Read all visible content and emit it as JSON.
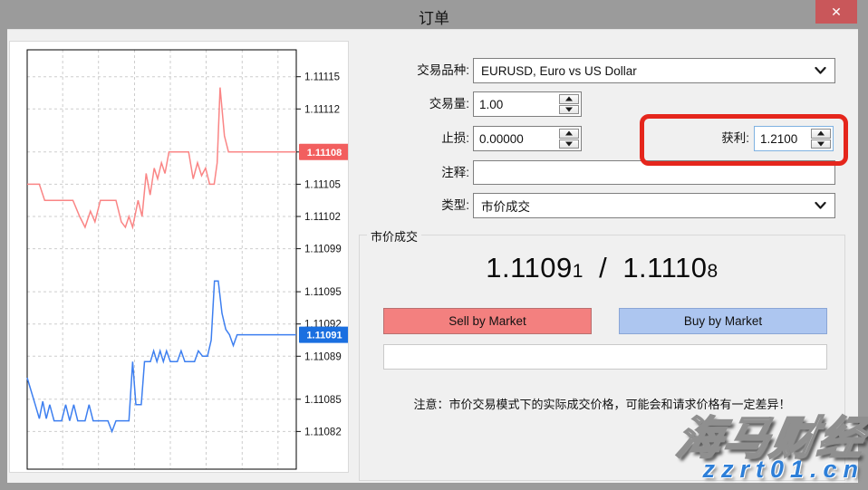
{
  "titlebar": {
    "title": "订单",
    "close": "✕"
  },
  "form": {
    "symbol_label": "交易品种:",
    "symbol_value": "EURUSD, Euro vs US Dollar",
    "volume_label": "交易量:",
    "volume_value": "1.00",
    "stoploss_label": "止损:",
    "stoploss_value": "0.00000",
    "takeprofit_label": "获利:",
    "takeprofit_value": "1.2100",
    "comment_label": "注释:",
    "comment_value": "",
    "type_label": "类型:",
    "type_value": "市价成交"
  },
  "market": {
    "group_title": "市价成交",
    "bid_main": "1.1109",
    "bid_last": "1",
    "separator": " / ",
    "ask_main": "1.1110",
    "ask_last": "8",
    "sell_label": "Sell by Market",
    "buy_label": "Buy by Market",
    "note": "注意：市价交易模式下的实际成交价格，可能会和请求价格有一定差异！"
  },
  "watermark": {
    "brand": "海马财经",
    "site": "zzrt01.cn"
  },
  "colors": {
    "titlebar": "#9b9b9b",
    "content_bg": "#f0f0f0",
    "annotation_red": "#e5261c",
    "close_button": "#c9575a",
    "sell_button": "#f3807f",
    "buy_button": "#adc6f0",
    "ask_line": "#fa8585",
    "bid_line": "#3d7ff0",
    "ask_badge": "#f25f5f",
    "bid_badge": "#1a6fe0"
  },
  "chart_data": {
    "type": "line",
    "ylim": [
      1.110785,
      1.111175
    ],
    "grid": true,
    "legend_position": "none",
    "y_ticks": [
      {
        "value": "1.11115"
      },
      {
        "value": "1.11112"
      },
      {
        "value": "1.11108",
        "hide_label": true
      },
      {
        "value": "1.11105"
      },
      {
        "value": "1.11102"
      },
      {
        "value": "1.11099"
      },
      {
        "value": "1.11095"
      },
      {
        "value": "1.11092"
      },
      {
        "value": "1.11089"
      },
      {
        "value": "1.11085"
      },
      {
        "value": "1.11082"
      }
    ],
    "x_gridlines": [
      0.132,
      0.265,
      0.399,
      0.532,
      0.665,
      0.799,
      0.932
    ],
    "badges": [
      {
        "value": 1.11108,
        "label": "1.11108",
        "color": "#f25f5f",
        "series": "ask"
      },
      {
        "value": 1.11091,
        "label": "1.11091",
        "color": "#1a6fe0",
        "series": "bid"
      }
    ],
    "series": [
      {
        "name": "ask",
        "color": "#fa8585",
        "points": [
          [
            0,
            1.11105
          ],
          [
            0.045,
            1.11105
          ],
          [
            0.065,
            1.111035
          ],
          [
            0.17,
            1.111035
          ],
          [
            0.195,
            1.11102
          ],
          [
            0.215,
            1.11101
          ],
          [
            0.235,
            1.111025
          ],
          [
            0.252,
            1.111015
          ],
          [
            0.272,
            1.111035
          ],
          [
            0.33,
            1.111035
          ],
          [
            0.35,
            1.111015
          ],
          [
            0.365,
            1.11101
          ],
          [
            0.378,
            1.11102
          ],
          [
            0.392,
            1.11101
          ],
          [
            0.412,
            1.111035
          ],
          [
            0.427,
            1.11102
          ],
          [
            0.442,
            1.11106
          ],
          [
            0.457,
            1.11104
          ],
          [
            0.472,
            1.111065
          ],
          [
            0.485,
            1.111055
          ],
          [
            0.499,
            1.11107
          ],
          [
            0.512,
            1.11106
          ],
          [
            0.527,
            1.11108
          ],
          [
            0.6,
            1.11108
          ],
          [
            0.617,
            1.111055
          ],
          [
            0.633,
            1.11107
          ],
          [
            0.648,
            1.111058
          ],
          [
            0.663,
            1.111065
          ],
          [
            0.678,
            1.11105
          ],
          [
            0.695,
            1.11105
          ],
          [
            0.706,
            1.11107
          ],
          [
            0.717,
            1.11114
          ],
          [
            0.733,
            1.111095
          ],
          [
            0.748,
            1.11108
          ],
          [
            1,
            1.11108
          ]
        ]
      },
      {
        "name": "bid",
        "color": "#3d7ff0",
        "points": [
          [
            0,
            1.11087
          ],
          [
            0.03,
            1.110845
          ],
          [
            0.045,
            1.110832
          ],
          [
            0.058,
            1.110848
          ],
          [
            0.071,
            1.110832
          ],
          [
            0.084,
            1.110845
          ],
          [
            0.1,
            1.11083
          ],
          [
            0.128,
            1.11083
          ],
          [
            0.143,
            1.110845
          ],
          [
            0.158,
            1.11083
          ],
          [
            0.173,
            1.110845
          ],
          [
            0.188,
            1.11083
          ],
          [
            0.215,
            1.11083
          ],
          [
            0.23,
            1.110845
          ],
          [
            0.245,
            1.11083
          ],
          [
            0.3,
            1.11083
          ],
          [
            0.315,
            1.11082
          ],
          [
            0.33,
            1.11083
          ],
          [
            0.378,
            1.11083
          ],
          [
            0.392,
            1.110885
          ],
          [
            0.404,
            1.110845
          ],
          [
            0.424,
            1.110845
          ],
          [
            0.436,
            1.110885
          ],
          [
            0.458,
            1.110885
          ],
          [
            0.47,
            1.110895
          ],
          [
            0.482,
            1.110885
          ],
          [
            0.494,
            1.110895
          ],
          [
            0.506,
            1.110885
          ],
          [
            0.518,
            1.110895
          ],
          [
            0.532,
            1.110885
          ],
          [
            0.558,
            1.110885
          ],
          [
            0.572,
            1.110895
          ],
          [
            0.586,
            1.110885
          ],
          [
            0.622,
            1.110885
          ],
          [
            0.636,
            1.110895
          ],
          [
            0.652,
            1.11089
          ],
          [
            0.67,
            1.11089
          ],
          [
            0.684,
            1.110905
          ],
          [
            0.696,
            1.11096
          ],
          [
            0.71,
            1.11096
          ],
          [
            0.724,
            1.11093
          ],
          [
            0.738,
            1.110915
          ],
          [
            0.752,
            1.11091
          ],
          [
            0.766,
            1.1109
          ],
          [
            0.78,
            1.11091
          ],
          [
            1,
            1.11091
          ]
        ]
      }
    ]
  }
}
